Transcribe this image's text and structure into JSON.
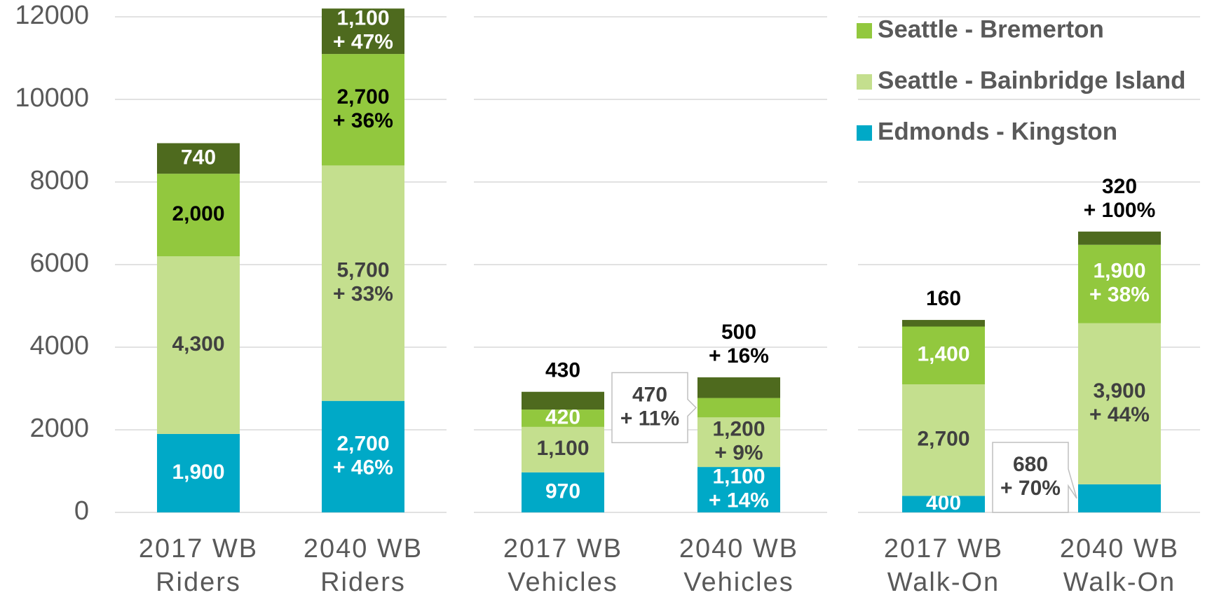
{
  "chart_data": {
    "type": "stacked-bar",
    "categories": [
      "2017 WB\nRiders",
      "2040 WB\nRiders",
      "2017 WB\nVehicles",
      "2040 WB\nVehicles",
      "2017 WB\nWalk-On",
      "2040 WB\nWalk-On"
    ],
    "series": [
      {
        "name": "Edmonds - Kingston",
        "color": "#00a9c7",
        "values": [
          1900,
          2700,
          970,
          1100,
          400,
          680
        ],
        "value_labels": [
          "1,900",
          "2,700\n+ 46%",
          "970",
          "1,100\n+ 14%",
          "400",
          "680\n+ 70%"
        ]
      },
      {
        "name": "Seattle - Bainbridge Island",
        "color": "#c4df8e",
        "values": [
          4300,
          5700,
          1100,
          1200,
          2700,
          3900
        ],
        "value_labels": [
          "4,300",
          "5,700\n+ 33%",
          "1,100",
          "1,200\n+ 9%",
          "2,700",
          "3,900\n+ 44%"
        ]
      },
      {
        "name": "Seattle - Bremerton",
        "color": "#92c83e",
        "values": [
          2000,
          2700,
          420,
          470,
          1400,
          1900
        ],
        "value_labels": [
          "2,000",
          "2,700\n+ 36%",
          "420",
          "470\n+ 11%",
          "1,400",
          "1,900\n+ 38%"
        ]
      },
      {
        "color": "#4e6a1e",
        "values": [
          740,
          1100,
          430,
          500,
          160,
          320
        ],
        "value_labels": [
          "740",
          "1,100\n+ 47%",
          "430",
          "500\n+ 16%",
          "160",
          "320\n+ 100%"
        ]
      }
    ],
    "ylim": [
      0,
      12000
    ],
    "yticks": [
      0,
      2000,
      4000,
      6000,
      8000,
      10000,
      12000
    ],
    "grid": true,
    "legend": "top-right"
  }
}
